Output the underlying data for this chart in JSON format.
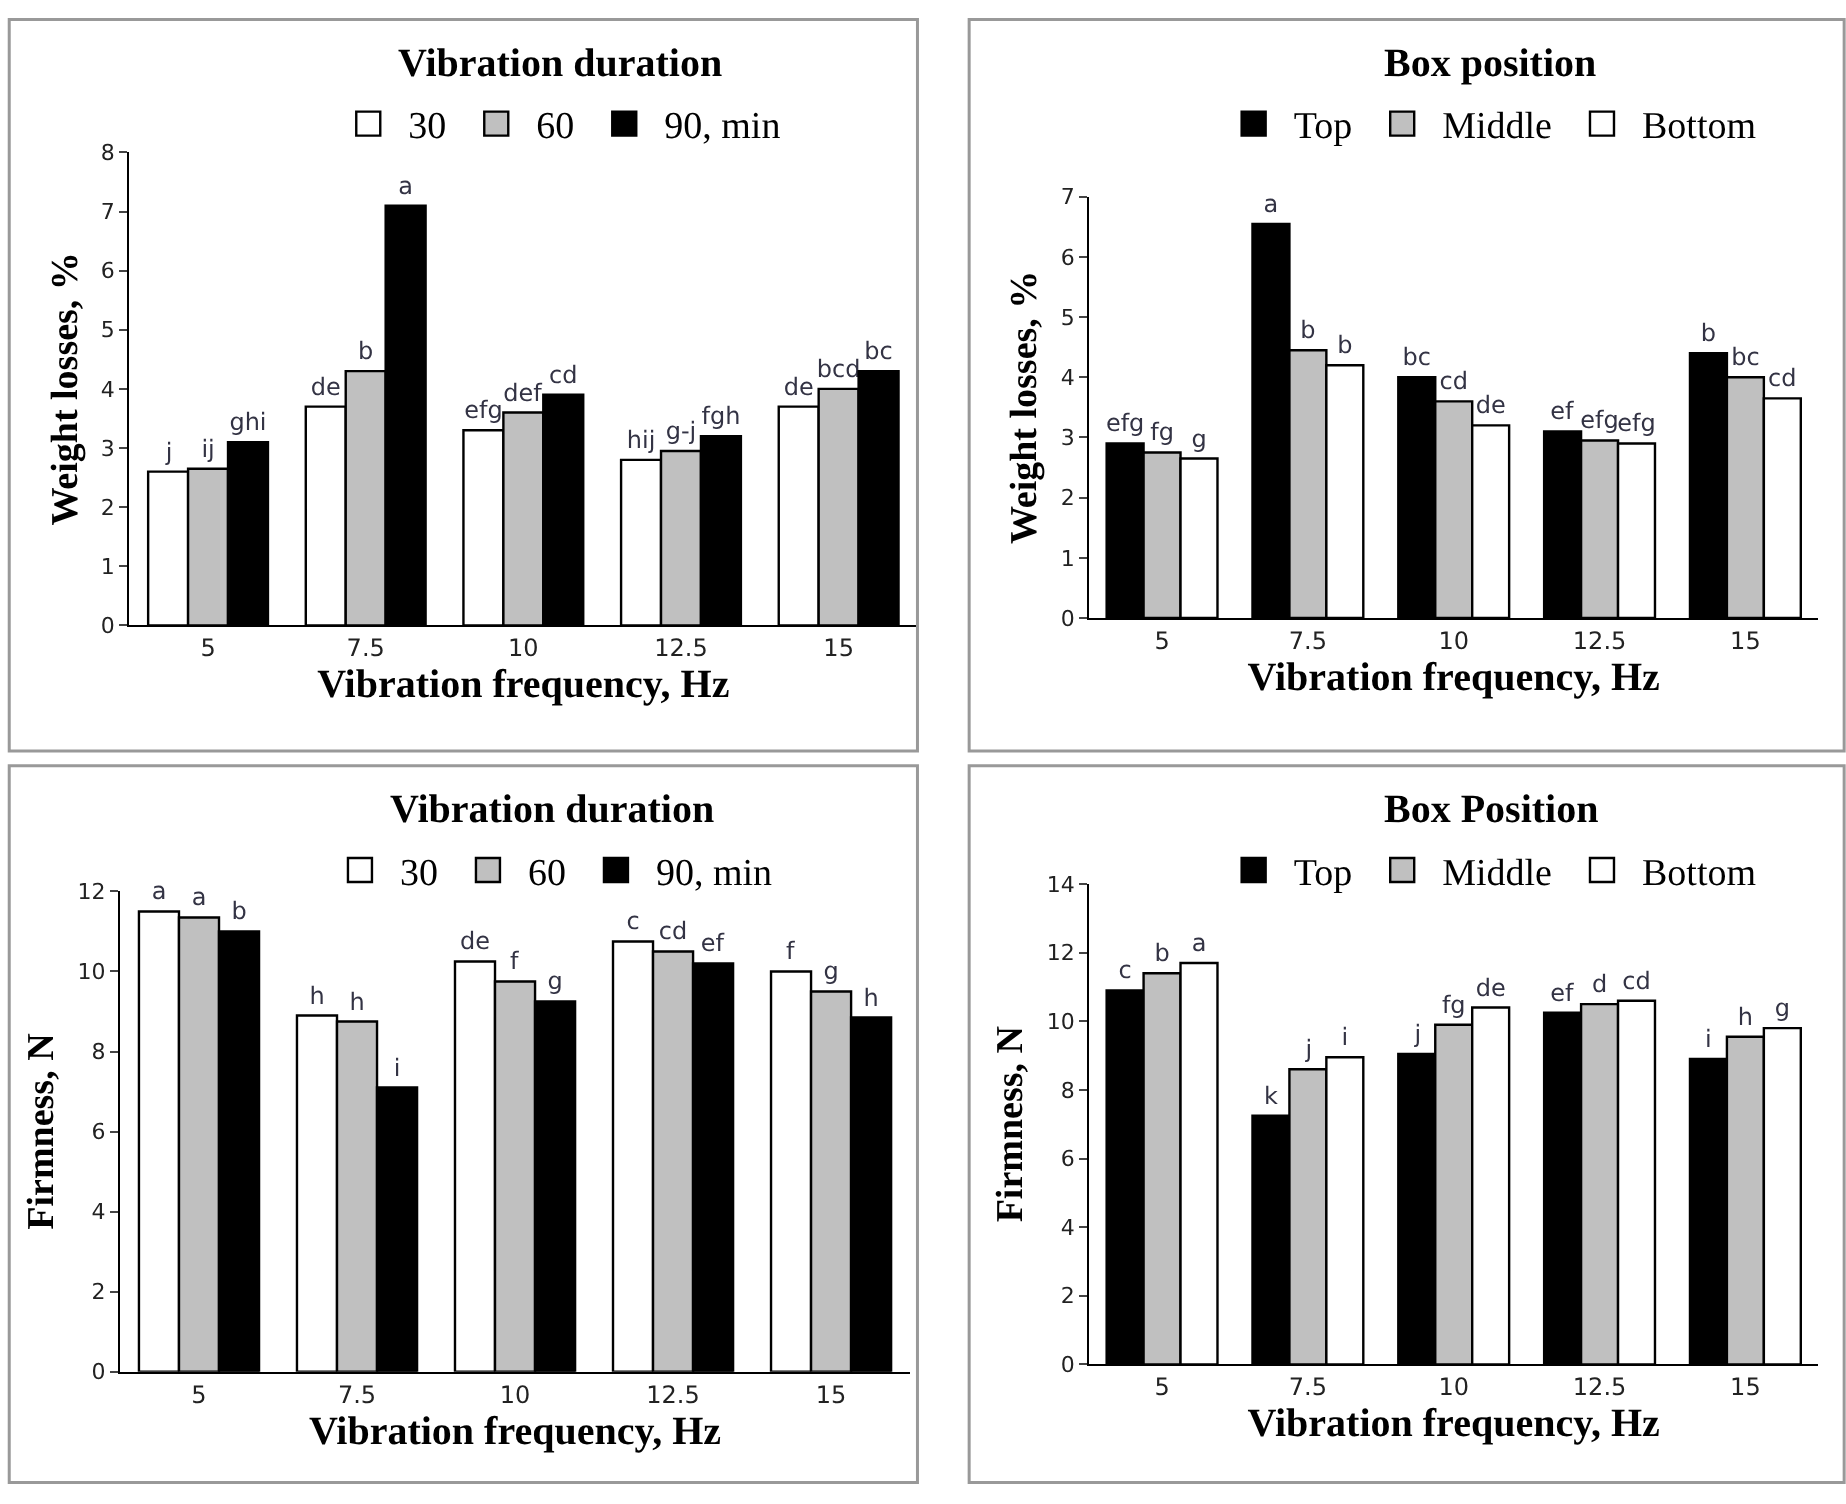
{
  "chart_data": [
    {
      "type": "bar",
      "title": "Vibration duration",
      "xlabel": "Vibration frequency, Hz",
      "ylabel": "Weight losses, %",
      "categories": [
        "5",
        "7.5",
        "10",
        "12.5",
        "15"
      ],
      "ylim": [
        0,
        8
      ],
      "yticks": [
        0,
        1,
        2,
        3,
        4,
        5,
        6,
        7,
        8
      ],
      "legend": "top",
      "series": [
        {
          "name": "30",
          "color": "#ffffff",
          "values": [
            2.6,
            3.7,
            3.3,
            2.8,
            3.7
          ],
          "value_labels": [
            "j",
            "de",
            "efg",
            "hij",
            "de"
          ]
        },
        {
          "name": "60",
          "color": "#c0c0c0",
          "values": [
            2.65,
            4.3,
            3.6,
            2.95,
            4.0
          ],
          "value_labels": [
            "ij",
            "b",
            "def",
            "g-j",
            "bcd"
          ]
        },
        {
          "name": "90, min",
          "color": "#000000",
          "values": [
            3.1,
            7.1,
            3.9,
            3.2,
            4.3
          ],
          "value_labels": [
            "ghi",
            "a",
            "cd",
            "fgh",
            "bc"
          ]
        }
      ]
    },
    {
      "type": "bar",
      "title": "Box position",
      "xlabel": "Vibration frequency, Hz",
      "ylabel": "Weight losses, %",
      "categories": [
        "5",
        "7.5",
        "10",
        "12.5",
        "15"
      ],
      "ylim": [
        0,
        7
      ],
      "yticks": [
        0,
        1,
        2,
        3,
        4,
        5,
        6,
        7
      ],
      "legend": "top",
      "series": [
        {
          "name": "Top",
          "color": "#000000",
          "values": [
            2.9,
            6.55,
            4.0,
            3.1,
            4.4
          ],
          "value_labels": [
            "efg",
            "a",
            "bc",
            "ef",
            "b"
          ]
        },
        {
          "name": "Middle",
          "color": "#c0c0c0",
          "values": [
            2.75,
            4.45,
            3.6,
            2.95,
            4.0
          ],
          "value_labels": [
            "fg",
            "b",
            "cd",
            "efg",
            "bc"
          ]
        },
        {
          "name": "Bottom",
          "color": "#ffffff",
          "values": [
            2.65,
            4.2,
            3.2,
            2.9,
            3.65
          ],
          "value_labels": [
            "g",
            "b",
            "de",
            "efg",
            "cd"
          ]
        }
      ]
    },
    {
      "type": "bar",
      "title": "Vibration duration",
      "xlabel": "Vibration frequency, Hz",
      "ylabel": "Firmness, N",
      "categories": [
        "5",
        "7.5",
        "10",
        "12.5",
        "15"
      ],
      "ylim": [
        0,
        12
      ],
      "yticks": [
        0,
        2,
        4,
        6,
        8,
        10,
        12
      ],
      "legend": "top",
      "series": [
        {
          "name": "30",
          "color": "#ffffff",
          "values": [
            11.5,
            8.9,
            10.25,
            10.75,
            10.0
          ],
          "value_labels": [
            "a",
            "h",
            "de",
            "c",
            "f"
          ]
        },
        {
          "name": "60",
          "color": "#c0c0c0",
          "values": [
            11.35,
            8.75,
            9.75,
            10.5,
            9.5
          ],
          "value_labels": [
            "a",
            "h",
            "f",
            "cd",
            "g"
          ]
        },
        {
          "name": "90, min",
          "color": "#000000",
          "values": [
            11.0,
            7.1,
            9.25,
            10.2,
            8.85
          ],
          "value_labels": [
            "b",
            "i",
            "g",
            "ef",
            "h"
          ]
        }
      ]
    },
    {
      "type": "bar",
      "title": "Box Position",
      "xlabel": "Vibration frequency, Hz",
      "ylabel": "Firmness, N",
      "categories": [
        "5",
        "7.5",
        "10",
        "12.5",
        "15"
      ],
      "ylim": [
        0,
        14
      ],
      "yticks": [
        0,
        2,
        4,
        6,
        8,
        10,
        12,
        14
      ],
      "legend": "top",
      "series": [
        {
          "name": "Top",
          "color": "#000000",
          "values": [
            10.9,
            7.25,
            9.05,
            10.25,
            8.9
          ],
          "value_labels": [
            "c",
            "k",
            "j",
            "ef",
            "i"
          ]
        },
        {
          "name": "Middle",
          "color": "#c0c0c0",
          "values": [
            11.4,
            8.6,
            9.9,
            10.5,
            9.55
          ],
          "value_labels": [
            "b",
            "j",
            "fg",
            "d",
            "h"
          ]
        },
        {
          "name": "Bottom",
          "color": "#ffffff",
          "values": [
            11.7,
            8.95,
            10.4,
            10.6,
            9.8
          ],
          "value_labels": [
            "a",
            "i",
            "de",
            "cd",
            "g"
          ]
        }
      ]
    }
  ]
}
